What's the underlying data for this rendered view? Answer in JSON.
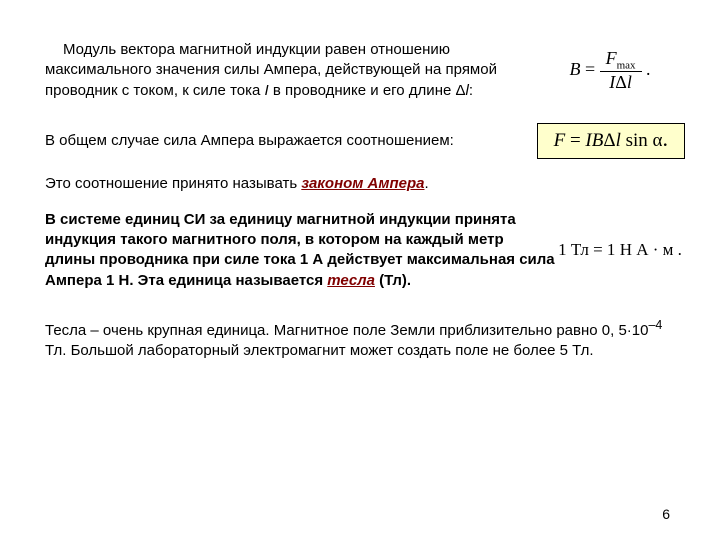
{
  "para1": {
    "pre": "Модуль вектора магнитной индукции равен отношению максимального значения силы Ампера, действующей на прямой проводник с током, к силе тока ",
    "var1": "I",
    "mid": " в проводнике и его длине Δ",
    "var2": "l",
    "post": ":"
  },
  "formula1": {
    "lhs": "B",
    "num_F": "F",
    "num_sub": "max",
    "den_I": "I",
    "den_delta": "Δ",
    "den_l": "l",
    "period": "."
  },
  "para2": "В общем случае сила Ампера выражается соотношением:",
  "formula2": {
    "F": "F",
    "eq": " = ",
    "IB": "IB",
    "delta": "Δ",
    "l": "l",
    "sin": " sin α",
    "dot": "."
  },
  "para3": {
    "pre": "Это соотношение принято называть ",
    "law": "законом Ампера",
    "post": "."
  },
  "para4": {
    "pre": "В системе единиц СИ за единицу магнитной индукции принята индукция такого магнитного поля, в котором на каждый метр длины проводника при силе тока 1 А действует максимальная сила Ампера 1 Н. Эта единица называется ",
    "unit": "тесла",
    "post": " (Тл)."
  },
  "formula3": {
    "lhs": "1 Тл = 1",
    "num": "Н",
    "den": "А · м",
    "period": "."
  },
  "para5": {
    "pre": "Тесла – очень крупная единица. Магнитное поле Земли приблизительно равно 0, 5·10",
    "exp": "–4",
    "post": " Тл. Большой лабораторный электромагнит может создать поле не более 5 Тл."
  },
  "page": "6"
}
